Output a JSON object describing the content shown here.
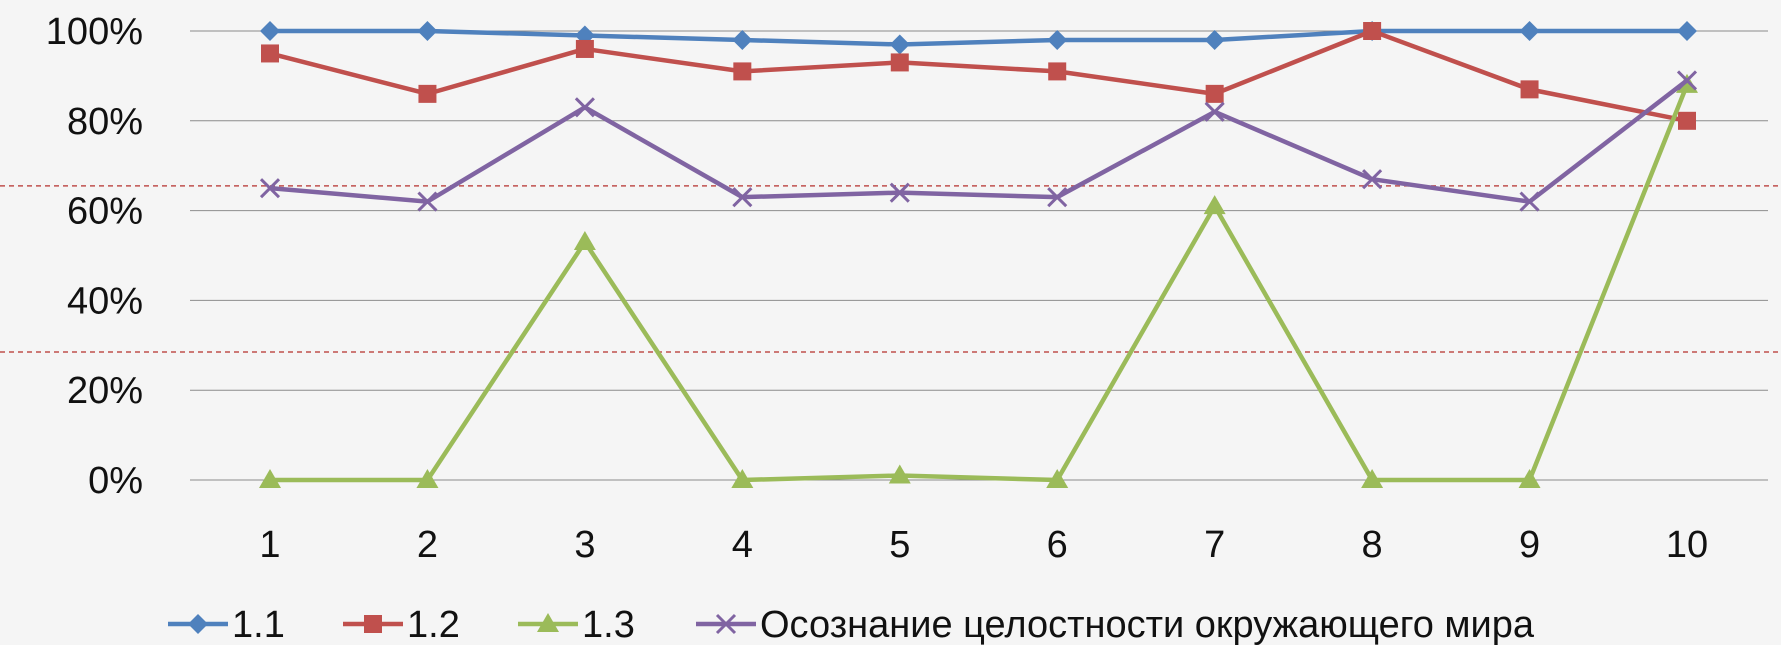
{
  "chart_data": {
    "type": "line",
    "title": "",
    "xlabel": "",
    "ylabel": "",
    "categories": [
      "1",
      "2",
      "3",
      "4",
      "5",
      "6",
      "7",
      "8",
      "9",
      "10"
    ],
    "ylim": [
      0,
      100
    ],
    "yticks": [
      0,
      20,
      40,
      60,
      80,
      100
    ],
    "ytick_suffix": "%",
    "grid": true,
    "legend_position": "bottom",
    "reference_lines": [
      {
        "value": 65.5,
        "color": "#c0504d",
        "style": "dashed"
      },
      {
        "value": 28.5,
        "color": "#c0504d",
        "style": "dashed"
      }
    ],
    "series": [
      {
        "name": "1.1",
        "color": "#4f81bd",
        "marker": "diamond",
        "values": [
          100,
          100,
          99,
          98,
          97,
          98,
          98,
          100,
          100,
          100
        ]
      },
      {
        "name": "1.2",
        "color": "#c0504d",
        "marker": "square",
        "values": [
          95,
          86,
          96,
          91,
          93,
          91,
          86,
          100,
          87,
          80
        ]
      },
      {
        "name": "1.3",
        "color": "#9bbb59",
        "marker": "triangle",
        "values": [
          0,
          0,
          53,
          0,
          1,
          0,
          61,
          0,
          0,
          88
        ]
      },
      {
        "name": "Осознание целостности окружающего мира",
        "color": "#8064a2",
        "marker": "x",
        "values": [
          65,
          62,
          83,
          63,
          64,
          63,
          82,
          67,
          62,
          89
        ]
      }
    ]
  }
}
